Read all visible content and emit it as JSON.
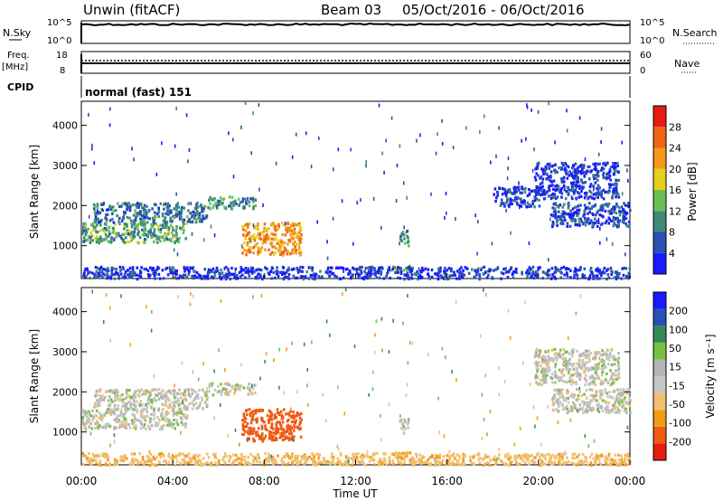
{
  "header": {
    "station": "Unwin (fitACF)",
    "beam": "Beam 03",
    "date_range": "05/Oct/2016 - 06/Oct/2016"
  },
  "top_panels": {
    "nsky_label": "N.Sky",
    "nsky_ticks": [
      "10^5",
      "10^0"
    ],
    "nsearch_label": "N.Search",
    "nsearch_ticks": [
      "10^5",
      "10^0"
    ],
    "freq_label": "Freq.",
    "freq_unit": "[MHz]",
    "freq_ticks": [
      "18",
      "8"
    ],
    "nave_label": "Nave",
    "nave_ticks": [
      "60",
      "0"
    ],
    "cpid_label": "CPID",
    "cpid_value": "normal (fast) 151"
  },
  "colors": {
    "power_scale": [
      "#1a1aff",
      "#2a4fb5",
      "#3d8a78",
      "#6cbf55",
      "#e7cf1e",
      "#f39a19",
      "#f06414",
      "#e81b10"
    ],
    "velocity_scale": [
      "#e81b10",
      "#f05a12",
      "#f39a19",
      "#f0c070",
      "#c7c7c7",
      "#b4b4b4",
      "#78c040",
      "#2f8a5a",
      "#2a4fb5",
      "#1a1aff"
    ]
  },
  "chart_data": [
    {
      "type": "heatmap",
      "name": "power",
      "ylabel": "Slant Range [km]",
      "ylim": [
        180,
        4600
      ],
      "yticks": [
        "4000",
        "3000",
        "2000",
        "1000"
      ],
      "colorbar_label": "Power [dB]",
      "colorbar_ticks": [
        "28",
        "24",
        "20",
        "16",
        "12",
        "8",
        "4"
      ],
      "xlim": [
        0,
        24
      ],
      "x_ticks": [
        "00:00",
        "04:00",
        "08:00",
        "12:00",
        "16:00",
        "20:00",
        "00:00"
      ],
      "regions": [
        {
          "t": [
            0.0,
            4.6
          ],
          "r": [
            1100,
            1600
          ],
          "dB": 14
        },
        {
          "t": [
            0.5,
            5.5
          ],
          "r": [
            1600,
            2100
          ],
          "dB": 10
        },
        {
          "t": [
            5.5,
            7.6
          ],
          "r": [
            1950,
            2250
          ],
          "dB": 12
        },
        {
          "t": [
            7.0,
            9.6
          ],
          "r": [
            800,
            1600
          ],
          "dB": 24
        },
        {
          "t": [
            13.9,
            14.3
          ],
          "r": [
            1000,
            1400
          ],
          "dB": 12
        },
        {
          "t": [
            13.5,
            14.4
          ],
          "r": [
            380,
            520
          ],
          "dB": 18
        },
        {
          "t": [
            0.0,
            24.0
          ],
          "r": [
            200,
            500
          ],
          "dB": 6
        },
        {
          "t": [
            18.0,
            20.0
          ],
          "r": [
            2000,
            2500
          ],
          "dB": 6
        },
        {
          "t": [
            19.8,
            23.5
          ],
          "r": [
            2200,
            3100
          ],
          "dB": 6
        },
        {
          "t": [
            20.5,
            24.0
          ],
          "r": [
            1500,
            2100
          ],
          "dB": 8
        }
      ]
    },
    {
      "type": "heatmap",
      "name": "velocity",
      "ylabel": "Slant Range [km]",
      "ylim": [
        180,
        4600
      ],
      "yticks": [
        "4000",
        "3000",
        "2000",
        "1000"
      ],
      "colorbar_label": "Velocity [m s⁻¹]",
      "colorbar_ticks": [
        "200",
        "100",
        "50",
        "15",
        "-15",
        "-50",
        "-100",
        "-200"
      ],
      "xlim": [
        0,
        24
      ],
      "x_ticks": [
        "00:00",
        "04:00",
        "08:00",
        "12:00",
        "16:00",
        "20:00",
        "00:00"
      ],
      "xlabel": "Time UT",
      "regions": [
        {
          "t": [
            0.0,
            4.6
          ],
          "r": [
            1100,
            1600
          ],
          "v": 0
        },
        {
          "t": [
            0.5,
            5.5
          ],
          "r": [
            1600,
            2100
          ],
          "v": 0
        },
        {
          "t": [
            5.5,
            7.6
          ],
          "r": [
            1950,
            2250
          ],
          "v": 0
        },
        {
          "t": [
            7.0,
            9.6
          ],
          "r": [
            800,
            1600
          ],
          "v": -180
        },
        {
          "t": [
            13.9,
            14.3
          ],
          "r": [
            1000,
            1400
          ],
          "v": 0
        },
        {
          "t": [
            13.5,
            14.4
          ],
          "r": [
            380,
            520
          ],
          "v": -60
        },
        {
          "t": [
            0.0,
            24.0
          ],
          "r": [
            200,
            500
          ],
          "v": -40
        },
        {
          "t": [
            19.8,
            23.5
          ],
          "r": [
            2200,
            3100
          ],
          "v": 0
        },
        {
          "t": [
            20.5,
            24.0
          ],
          "r": [
            1500,
            2100
          ],
          "v": 0
        }
      ]
    }
  ]
}
